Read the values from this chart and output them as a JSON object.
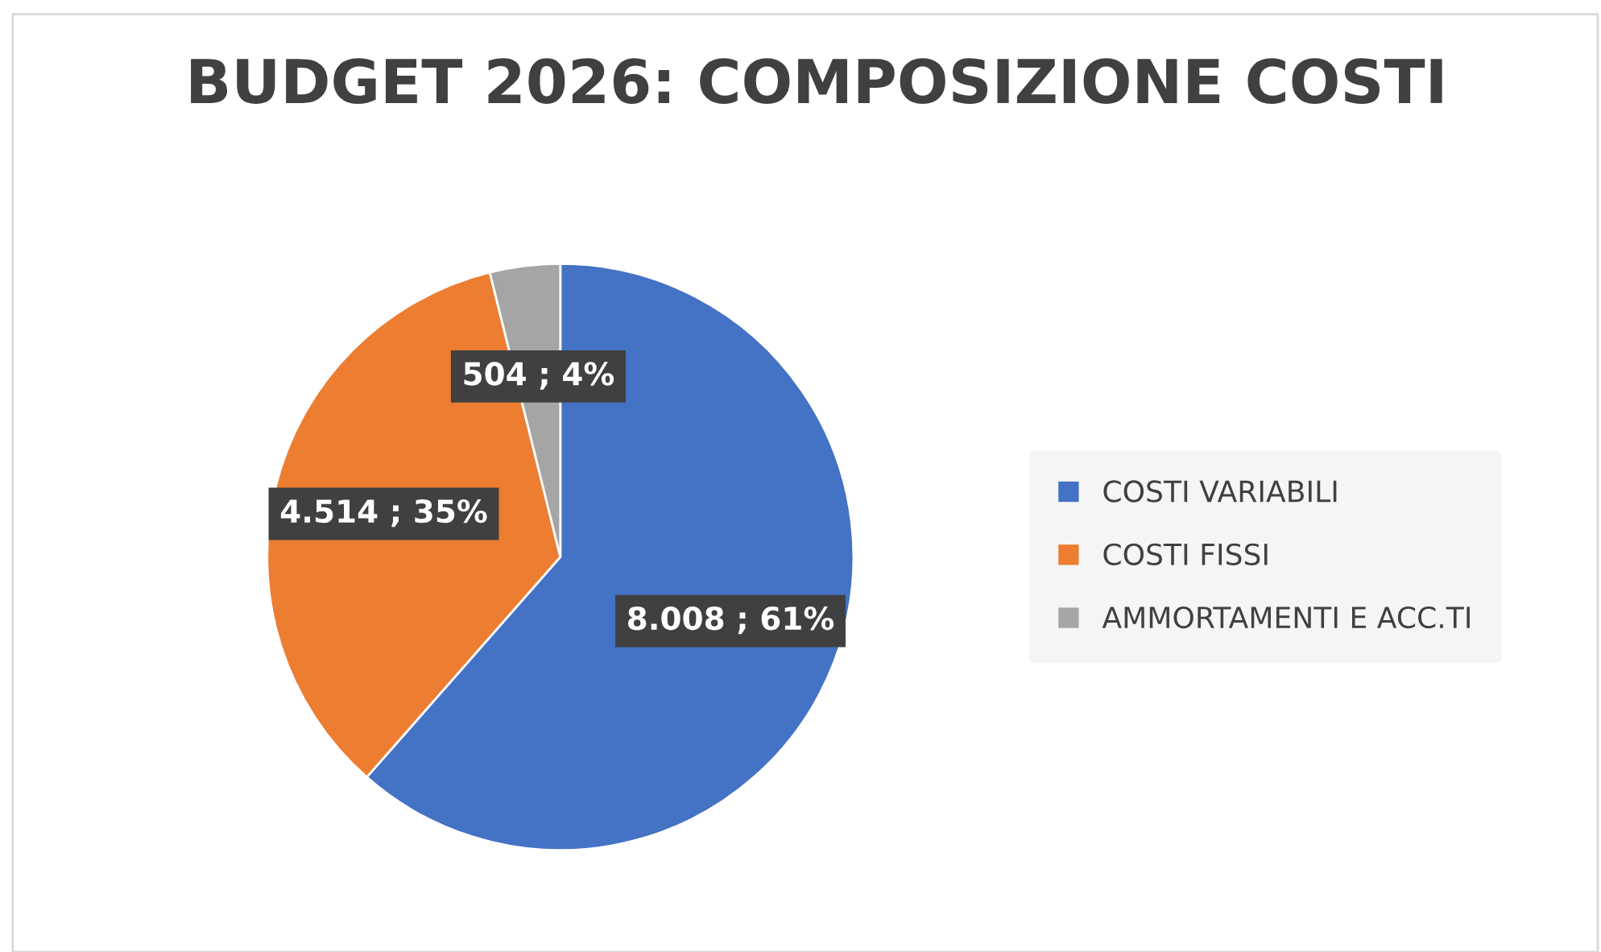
{
  "chart_data": {
    "type": "pie",
    "title": "BUDGET 2026: COMPOSIZIONE COSTI",
    "categories": [
      "COSTI VARIABILI",
      "COSTI FISSI",
      "AMMORTAMENTI E ACC.TI"
    ],
    "values": [
      8008,
      4514,
      504
    ],
    "colors": [
      "#4472c4",
      "#ed7d31",
      "#a5a5a5"
    ],
    "value_labels": [
      "8.008 ; 61%",
      "4.514 ; 35%",
      "504 ; 4%"
    ],
    "legend": "right"
  }
}
